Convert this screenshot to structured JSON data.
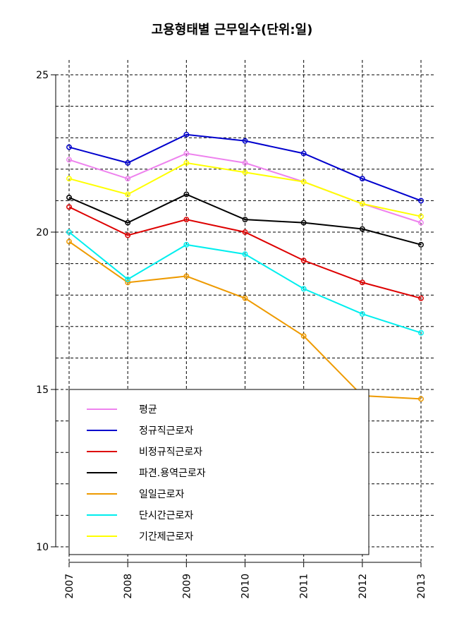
{
  "chart_data": {
    "type": "line",
    "title": "고용형태별 근무일수(단위:일)",
    "xlabel": "",
    "ylabel": "",
    "categories": [
      "2007",
      "2008",
      "2009",
      "2010",
      "2011",
      "2012",
      "2013"
    ],
    "ylim": [
      10,
      25
    ],
    "yticks": [
      10,
      15,
      20,
      25
    ],
    "grid": true,
    "legend_position": "bottom-left",
    "series": [
      {
        "name": "평균",
        "color": "#ee82ee",
        "values": [
          22.3,
          21.7,
          22.5,
          22.2,
          21.6,
          20.9,
          20.3
        ]
      },
      {
        "name": "정규직근로자",
        "color": "#0000cd",
        "values": [
          22.7,
          22.2,
          23.1,
          22.9,
          22.5,
          21.7,
          21.0
        ]
      },
      {
        "name": "비정규직근로자",
        "color": "#dd0000",
        "values": [
          20.8,
          19.9,
          20.4,
          20.0,
          19.1,
          18.4,
          17.9
        ]
      },
      {
        "name": "파견.용역근로자",
        "color": "#000000",
        "values": [
          21.1,
          20.3,
          21.2,
          20.4,
          20.3,
          20.1,
          19.6
        ]
      },
      {
        "name": "일일근로자",
        "color": "#ee9a00",
        "values": [
          19.7,
          18.4,
          18.6,
          17.9,
          16.7,
          14.8,
          14.7
        ]
      },
      {
        "name": "단시간근로자",
        "color": "#00eeee",
        "values": [
          20.0,
          18.5,
          19.6,
          19.3,
          18.2,
          17.4,
          16.8
        ]
      },
      {
        "name": "기간제근로자",
        "color": "#ffff00",
        "values": [
          21.7,
          21.2,
          22.2,
          21.9,
          21.6,
          20.9,
          20.5
        ]
      }
    ]
  }
}
